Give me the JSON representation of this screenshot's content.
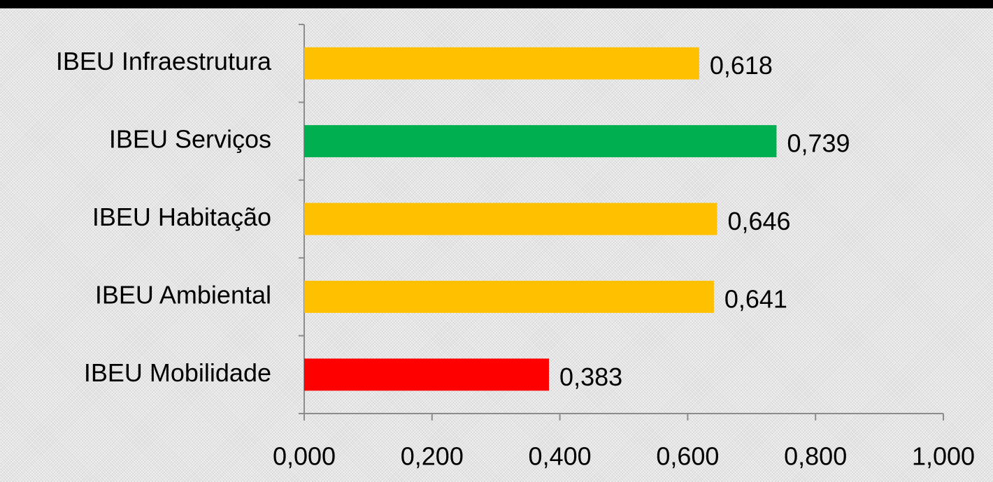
{
  "chart_data": {
    "type": "hbar",
    "categories": [
      "IBEU Infraestrutura",
      "IBEU Serviços",
      "IBEU Habitação",
      "IBEU Ambiental",
      "IBEU Mobilidade"
    ],
    "values": [
      0.618,
      0.739,
      0.646,
      0.641,
      0.383
    ],
    "value_labels": [
      "0,618",
      "0,739",
      "0,646",
      "0,641",
      "0,383"
    ],
    "colors": [
      "#ffc000",
      "#00b050",
      "#ffc000",
      "#ffc000",
      "#ff0000"
    ],
    "xlim": [
      0,
      1
    ],
    "xticks": [
      {
        "value": 0,
        "label": "0,000"
      },
      {
        "value": 0.2,
        "label": "0,200"
      },
      {
        "value": 0.4,
        "label": "0,400"
      },
      {
        "value": 0.6,
        "label": "0,600"
      },
      {
        "value": 0.8,
        "label": "0,800"
      },
      {
        "value": 1,
        "label": "1,000"
      }
    ],
    "grid": false
  }
}
